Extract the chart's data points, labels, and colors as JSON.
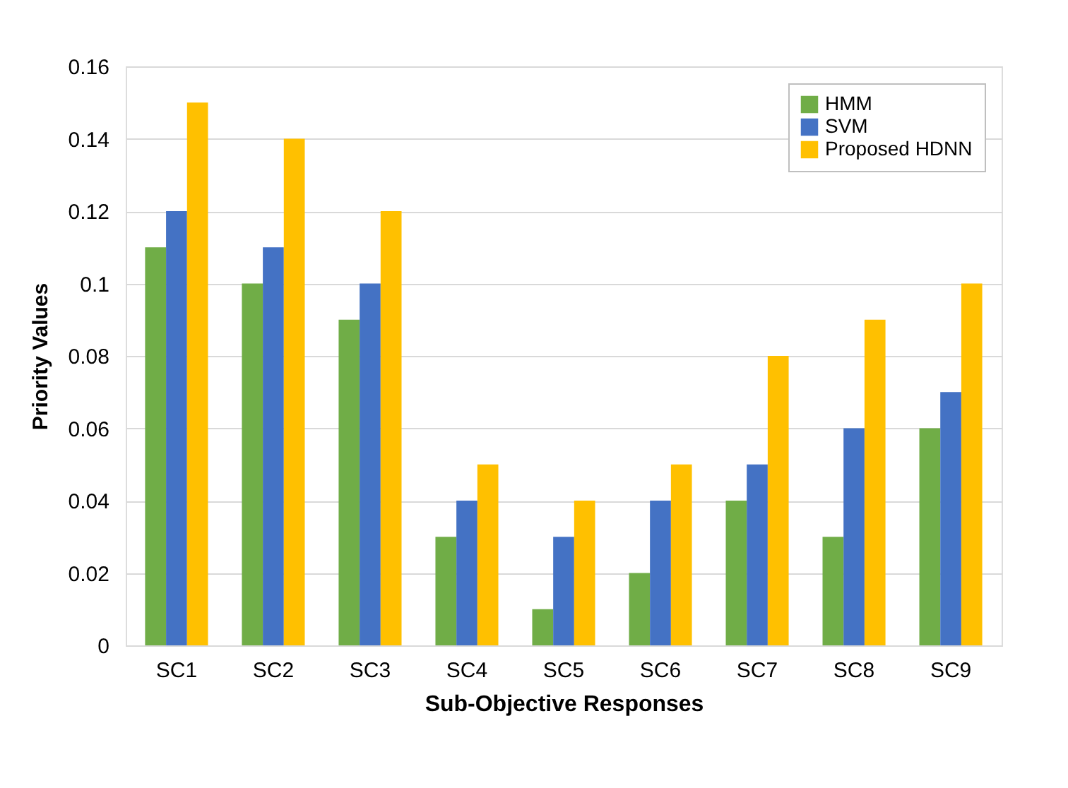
{
  "chart_data": {
    "type": "bar",
    "xlabel": "Sub-Objective Responses",
    "ylabel": "Priority Values",
    "categories": [
      "SC1",
      "SC2",
      "SC3",
      "SC4",
      "SC5",
      "SC6",
      "SC7",
      "SC8",
      "SC9"
    ],
    "series": [
      {
        "name": "HMM",
        "color": "#70ad47",
        "values": [
          0.11,
          0.1,
          0.09,
          0.03,
          0.01,
          0.02,
          0.04,
          0.03,
          0.06
        ]
      },
      {
        "name": "SVM",
        "color": "#4472c4",
        "values": [
          0.12,
          0.11,
          0.1,
          0.04,
          0.03,
          0.04,
          0.05,
          0.06,
          0.07
        ]
      },
      {
        "name": "Proposed HDNN",
        "color": "#ffc000",
        "values": [
          0.15,
          0.14,
          0.12,
          0.05,
          0.04,
          0.05,
          0.08,
          0.09,
          0.1
        ]
      }
    ],
    "ylim": [
      0,
      0.16
    ],
    "yticks": [
      0,
      0.02,
      0.04,
      0.06,
      0.08,
      0.1,
      0.12,
      0.14,
      0.16
    ],
    "grid": "y",
    "legend": "top right"
  }
}
